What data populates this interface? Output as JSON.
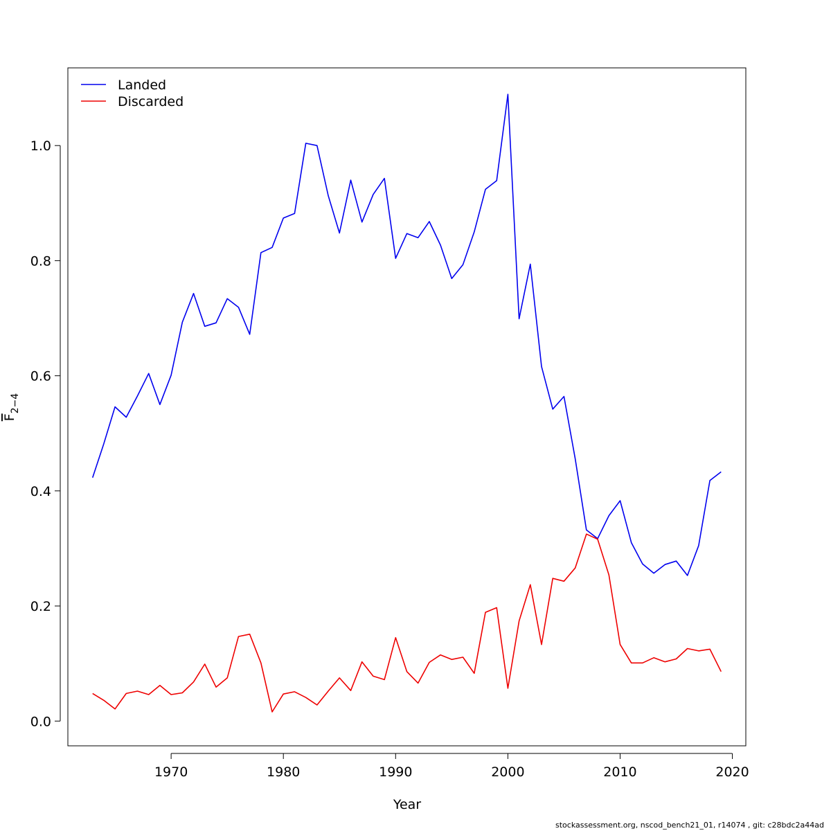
{
  "chart_data": {
    "type": "line",
    "xlabel": "Year",
    "ylabel": "F",
    "ylabel_subscript": "2−4",
    "xlim": [
      1960.8,
      2021.2
    ],
    "ylim": [
      -0.043,
      1.135
    ],
    "xticks": [
      1970,
      1980,
      1990,
      2000,
      2010,
      2020
    ],
    "yticks": [
      0.0,
      0.2,
      0.4,
      0.6,
      0.8,
      1.0
    ],
    "xtick_labels": [
      "1970",
      "1980",
      "1990",
      "2000",
      "2010",
      "2020"
    ],
    "ytick_labels": [
      "0.0",
      "0.2",
      "0.4",
      "0.6",
      "0.8",
      "1.0"
    ],
    "grid": false,
    "legend_position": "top-left",
    "x": [
      1963,
      1964,
      1965,
      1966,
      1967,
      1968,
      1969,
      1970,
      1971,
      1972,
      1973,
      1974,
      1975,
      1976,
      1977,
      1978,
      1979,
      1980,
      1981,
      1982,
      1983,
      1984,
      1985,
      1986,
      1987,
      1988,
      1989,
      1990,
      1991,
      1992,
      1993,
      1994,
      1995,
      1996,
      1997,
      1998,
      1999,
      2000,
      2001,
      2002,
      2003,
      2004,
      2005,
      2006,
      2007,
      2008,
      2009,
      2010,
      2011,
      2012,
      2013,
      2014,
      2015,
      2016,
      2017,
      2018,
      2019
    ],
    "series": [
      {
        "name": "Landed",
        "color": "#0000ee",
        "values": [
          0.423,
          0.482,
          0.546,
          0.528,
          0.565,
          0.604,
          0.55,
          0.601,
          0.693,
          0.743,
          0.686,
          0.692,
          0.734,
          0.719,
          0.672,
          0.814,
          0.823,
          0.874,
          0.882,
          1.004,
          1.0,
          0.913,
          0.848,
          0.94,
          0.867,
          0.915,
          0.943,
          0.804,
          0.847,
          0.84,
          0.868,
          0.827,
          0.769,
          0.793,
          0.85,
          0.924,
          0.939,
          1.089,
          0.699,
          0.794,
          0.616,
          0.542,
          0.564,
          0.456,
          0.332,
          0.317,
          0.357,
          0.383,
          0.31,
          0.273,
          0.257,
          0.272,
          0.278,
          0.253,
          0.305,
          0.418,
          0.433
        ]
      },
      {
        "name": "Discarded",
        "color": "#ee0000",
        "values": [
          0.048,
          0.036,
          0.021,
          0.048,
          0.052,
          0.046,
          0.062,
          0.046,
          0.049,
          0.068,
          0.099,
          0.059,
          0.075,
          0.147,
          0.151,
          0.101,
          0.016,
          0.047,
          0.051,
          0.041,
          0.028,
          0.052,
          0.075,
          0.053,
          0.103,
          0.078,
          0.072,
          0.145,
          0.086,
          0.066,
          0.102,
          0.115,
          0.107,
          0.111,
          0.083,
          0.189,
          0.197,
          0.057,
          0.174,
          0.237,
          0.133,
          0.248,
          0.243,
          0.266,
          0.325,
          0.316,
          0.254,
          0.133,
          0.101,
          0.101,
          0.11,
          0.103,
          0.108,
          0.126,
          0.122,
          0.125,
          0.086
        ]
      }
    ]
  },
  "footer": "stockassessment.org, nscod_bench21_01, r14074 , git: c28bdc2a44ad"
}
